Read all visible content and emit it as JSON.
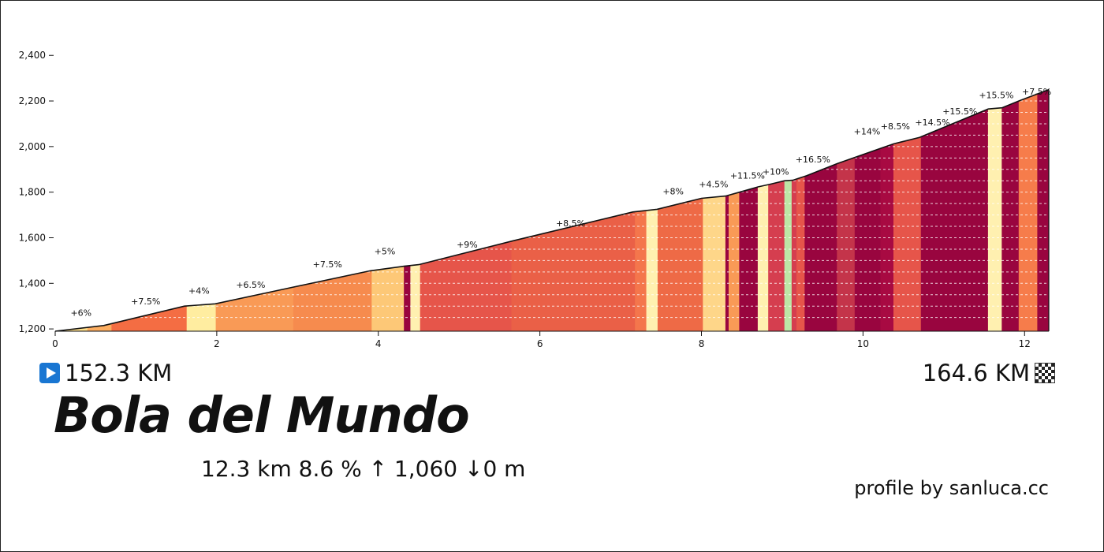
{
  "start_km": "152.3 KM",
  "end_km": "164.6 KM",
  "icons": {
    "start": "play-icon",
    "finish": "checkered-flag-icon"
  },
  "title": "Bola del Mundo",
  "stats": "12.3 km 8.6 %  ↑ 1,060 ↓0 m",
  "credit": "profile by sanluca.cc",
  "chart_data": {
    "type": "area",
    "title": "",
    "xlabel": "",
    "ylabel": "",
    "xlim": [
      0,
      12.3
    ],
    "ylim": [
      1190,
      2470
    ],
    "x_ticks": [
      0,
      2,
      4,
      6,
      8,
      10,
      12
    ],
    "x_tick_labels": [
      "0",
      "2",
      "4",
      "6",
      "8",
      "10",
      "12"
    ],
    "y_ticks": [
      1200,
      1400,
      1600,
      1800,
      2000,
      2200,
      2400
    ],
    "y_tick_labels": [
      "1,200",
      "1,400",
      "1,600",
      "1,800",
      "2,000",
      "2,200",
      "2,400"
    ],
    "grid": "horizontal dashed",
    "profile": [
      {
        "x": 0,
        "y": 1190
      },
      {
        "x": 0.6,
        "y": 1215
      },
      {
        "x": 1.6,
        "y": 1300
      },
      {
        "x": 1.98,
        "y": 1310
      },
      {
        "x": 2.9,
        "y": 1380
      },
      {
        "x": 3.9,
        "y": 1455
      },
      {
        "x": 4.32,
        "y": 1475
      },
      {
        "x": 4.5,
        "y": 1482
      },
      {
        "x": 5.65,
        "y": 1585
      },
      {
        "x": 7.15,
        "y": 1713
      },
      {
        "x": 7.45,
        "y": 1725
      },
      {
        "x": 8.0,
        "y": 1773
      },
      {
        "x": 8.3,
        "y": 1783
      },
      {
        "x": 8.45,
        "y": 1798
      },
      {
        "x": 8.7,
        "y": 1823
      },
      {
        "x": 8.85,
        "y": 1835
      },
      {
        "x": 9.03,
        "y": 1850
      },
      {
        "x": 9.13,
        "y": 1852
      },
      {
        "x": 9.3,
        "y": 1872
      },
      {
        "x": 9.68,
        "y": 1925
      },
      {
        "x": 10.2,
        "y": 1990
      },
      {
        "x": 10.38,
        "y": 2012
      },
      {
        "x": 10.7,
        "y": 2040
      },
      {
        "x": 11.55,
        "y": 2165
      },
      {
        "x": 11.72,
        "y": 2170
      },
      {
        "x": 11.93,
        "y": 2200
      },
      {
        "x": 12.3,
        "y": 2250
      }
    ],
    "segments": [
      {
        "x0": 0.0,
        "x1": 0.4,
        "color": "#fee08b"
      },
      {
        "x0": 0.4,
        "x1": 0.7,
        "color": "#fdae61"
      },
      {
        "x0": 0.7,
        "x1": 1.63,
        "color": "#f46d43"
      },
      {
        "x0": 1.63,
        "x1": 1.99,
        "color": "#ffeda0"
      },
      {
        "x0": 1.99,
        "x1": 2.95,
        "color": "#f99a56"
      },
      {
        "x0": 2.95,
        "x1": 3.92,
        "color": "#f68b4e"
      },
      {
        "x0": 3.92,
        "x1": 4.32,
        "color": "#fdc877"
      },
      {
        "x0": 4.32,
        "x1": 4.4,
        "color": "#99053f"
      },
      {
        "x0": 4.4,
        "x1": 4.52,
        "color": "#fff0b0"
      },
      {
        "x0": 4.52,
        "x1": 5.65,
        "color": "#e6554a"
      },
      {
        "x0": 5.65,
        "x1": 7.18,
        "color": "#ea6047"
      },
      {
        "x0": 7.18,
        "x1": 7.32,
        "color": "#f4764c"
      },
      {
        "x0": 7.32,
        "x1": 7.46,
        "color": "#fff0b0"
      },
      {
        "x0": 7.46,
        "x1": 8.02,
        "color": "#ee6a46"
      },
      {
        "x0": 8.02,
        "x1": 8.3,
        "color": "#fed689"
      },
      {
        "x0": 8.3,
        "x1": 8.34,
        "color": "#99053f"
      },
      {
        "x0": 8.34,
        "x1": 8.47,
        "color": "#f99a56"
      },
      {
        "x0": 8.47,
        "x1": 8.7,
        "color": "#99053f"
      },
      {
        "x0": 8.7,
        "x1": 8.83,
        "color": "#fff0b0"
      },
      {
        "x0": 8.83,
        "x1": 9.03,
        "color": "#d53e4f"
      },
      {
        "x0": 9.03,
        "x1": 9.12,
        "color": "#bde6a6"
      },
      {
        "x0": 9.12,
        "x1": 9.18,
        "color": "#d53e4f"
      },
      {
        "x0": 9.18,
        "x1": 9.28,
        "color": "#e6554a"
      },
      {
        "x0": 9.28,
        "x1": 9.68,
        "color": "#99053f"
      },
      {
        "x0": 9.68,
        "x1": 9.9,
        "color": "#c4344a"
      },
      {
        "x0": 9.9,
        "x1": 10.22,
        "color": "#99053f"
      },
      {
        "x0": 10.22,
        "x1": 10.38,
        "color": "#a80a42"
      },
      {
        "x0": 10.38,
        "x1": 10.72,
        "color": "#e6554a"
      },
      {
        "x0": 10.72,
        "x1": 11.55,
        "color": "#99053f"
      },
      {
        "x0": 11.55,
        "x1": 11.72,
        "color": "#fff0b0"
      },
      {
        "x0": 11.72,
        "x1": 11.93,
        "color": "#99053f"
      },
      {
        "x0": 11.93,
        "x1": 12.16,
        "color": "#f67c4b"
      },
      {
        "x0": 12.16,
        "x1": 12.3,
        "color": "#99053f"
      }
    ],
    "annotations": [
      {
        "x": 0.32,
        "y": 1257,
        "text": "+6%"
      },
      {
        "x": 1.12,
        "y": 1307,
        "text": "+7.5%"
      },
      {
        "x": 1.78,
        "y": 1355,
        "text": "+4%"
      },
      {
        "x": 2.42,
        "y": 1380,
        "text": "+6.5%"
      },
      {
        "x": 3.37,
        "y": 1470,
        "text": "+7.5%"
      },
      {
        "x": 4.08,
        "y": 1527,
        "text": "+5%"
      },
      {
        "x": 5.1,
        "y": 1557,
        "text": "+9%"
      },
      {
        "x": 6.38,
        "y": 1650,
        "text": "+8.5%"
      },
      {
        "x": 7.65,
        "y": 1790,
        "text": "+8%"
      },
      {
        "x": 8.15,
        "y": 1822,
        "text": "+4.5%"
      },
      {
        "x": 8.57,
        "y": 1860,
        "text": "+11.5%"
      },
      {
        "x": 8.92,
        "y": 1877,
        "text": "+10%"
      },
      {
        "x": 9.38,
        "y": 1930,
        "text": "+16.5%"
      },
      {
        "x": 10.05,
        "y": 2053,
        "text": "+14%"
      },
      {
        "x": 10.4,
        "y": 2075,
        "text": "+8.5%"
      },
      {
        "x": 10.86,
        "y": 2093,
        "text": "+14.5%"
      },
      {
        "x": 11.2,
        "y": 2142,
        "text": "+15.5%"
      },
      {
        "x": 11.65,
        "y": 2213,
        "text": "+15.5%"
      },
      {
        "x": 12.15,
        "y": 2228,
        "text": "+7.5%"
      }
    ]
  }
}
